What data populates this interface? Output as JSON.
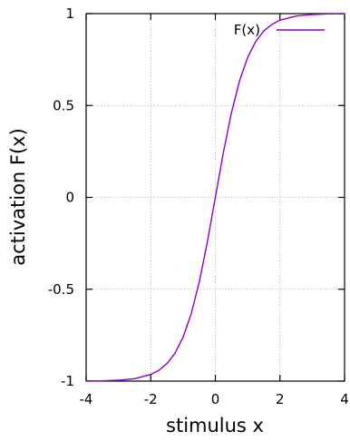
{
  "chart_data": {
    "type": "line",
    "xlabel": "stimulus x",
    "ylabel": "activation F(x)",
    "xlim": [
      -4,
      4
    ],
    "ylim": [
      -1,
      1
    ],
    "xticks": [
      -4,
      -2,
      0,
      2,
      4
    ],
    "xtick_labels": [
      "-4",
      "-2",
      "0",
      "2",
      "4"
    ],
    "yticks": [
      -1,
      -0.5,
      0,
      0.5,
      1
    ],
    "ytick_labels": [
      "-1",
      "-0.5",
      "0",
      "0.5",
      "1"
    ],
    "grid": true,
    "legend_position": "top-right",
    "series": [
      {
        "name": "F(x)",
        "color": "#8b00cc",
        "x": [
          -4,
          -3.5,
          -3,
          -2.5,
          -2,
          -1.75,
          -1.5,
          -1.25,
          -1,
          -0.75,
          -0.5,
          -0.25,
          0,
          0.25,
          0.5,
          0.75,
          1,
          1.25,
          1.5,
          1.75,
          2,
          2.5,
          3,
          3.5,
          4
        ],
        "y": [
          -0.9993,
          -0.9982,
          -0.9951,
          -0.9866,
          -0.964,
          -0.9414,
          -0.9051,
          -0.8483,
          -0.7616,
          -0.6351,
          -0.4621,
          -0.2449,
          0,
          0.2449,
          0.4621,
          0.6351,
          0.7616,
          0.8483,
          0.9051,
          0.9414,
          0.964,
          0.9866,
          0.9951,
          0.9982,
          0.9993
        ]
      }
    ]
  }
}
